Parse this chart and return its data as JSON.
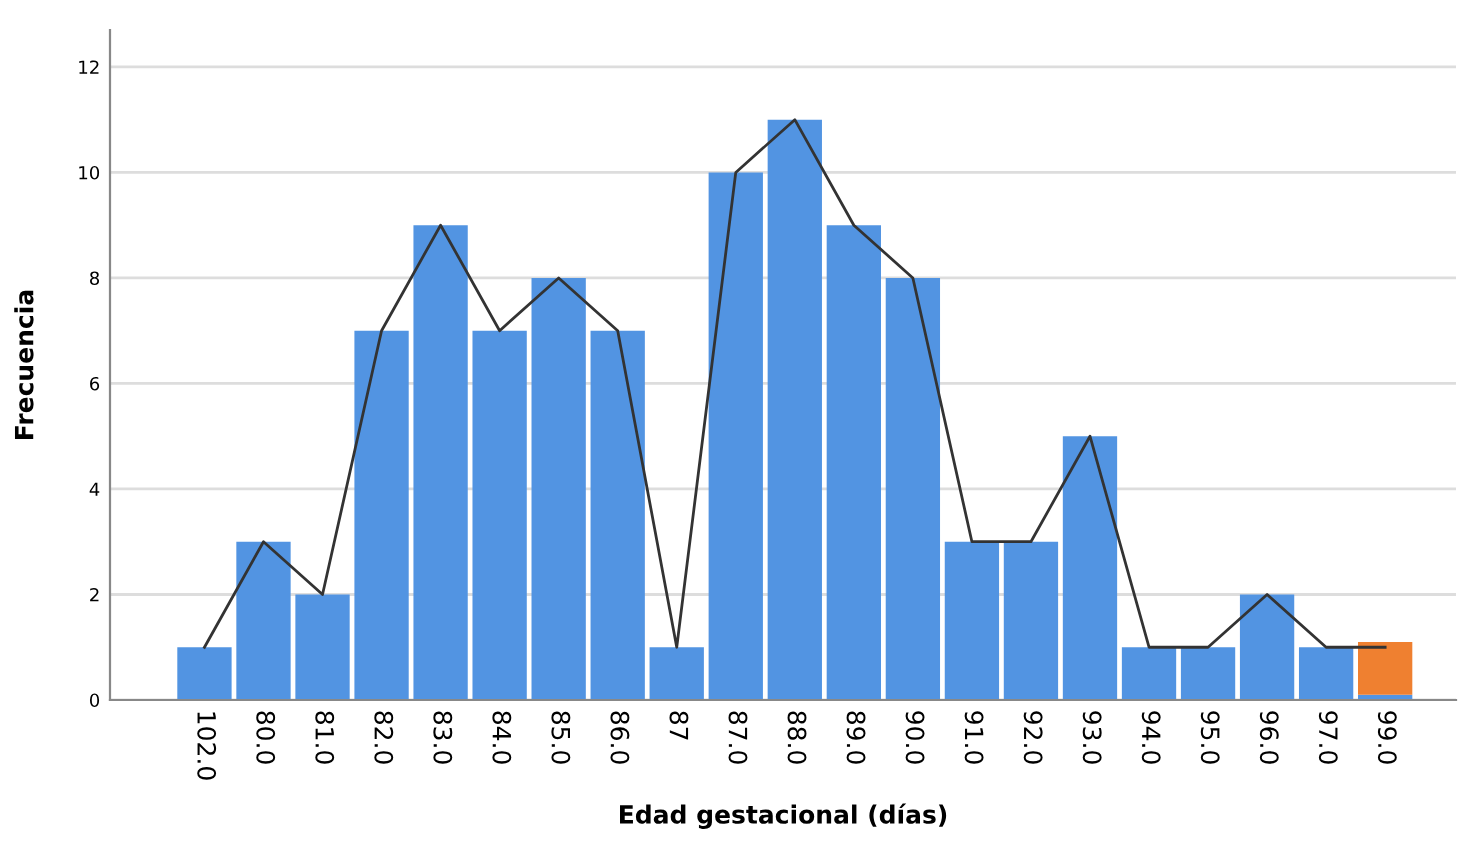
{
  "chart_data": {
    "type": "bar",
    "stacked": true,
    "xlabel": "Edad gestacional (días)",
    "ylabel": "Frecuencia",
    "categories": [
      "102.0",
      "80.0",
      "81.0",
      "82.0",
      "83.0",
      "84.0",
      "85.0",
      "86.0",
      "87",
      "87.0",
      "88.0",
      "89.0",
      "90.0",
      "91.0",
      "92.0",
      "93.0",
      "94.0",
      "95.0",
      "96.0",
      "97.0",
      "99.0"
    ],
    "series": [
      {
        "color": "#5294e2",
        "values": [
          1,
          3,
          2,
          7,
          9,
          7,
          8,
          7,
          1,
          10,
          11,
          9,
          8,
          3,
          3,
          5,
          1,
          1,
          2,
          1,
          0.1
        ]
      },
      {
        "color": "#ef8030",
        "values": [
          null,
          null,
          null,
          null,
          null,
          null,
          null,
          null,
          null,
          null,
          null,
          null,
          null,
          null,
          null,
          null,
          null,
          null,
          null,
          null,
          1
        ]
      },
      {
        "type": "line",
        "color": "#333333",
        "values": [
          1,
          3,
          2,
          7,
          9,
          7,
          8,
          7,
          1,
          10,
          11,
          9,
          8,
          3,
          3,
          5,
          1,
          1,
          2,
          1,
          1
        ]
      }
    ],
    "ylim": [
      0,
      12.7
    ],
    "yticks": [
      0,
      2,
      4,
      6,
      8,
      10,
      12
    ],
    "grid": "y"
  }
}
